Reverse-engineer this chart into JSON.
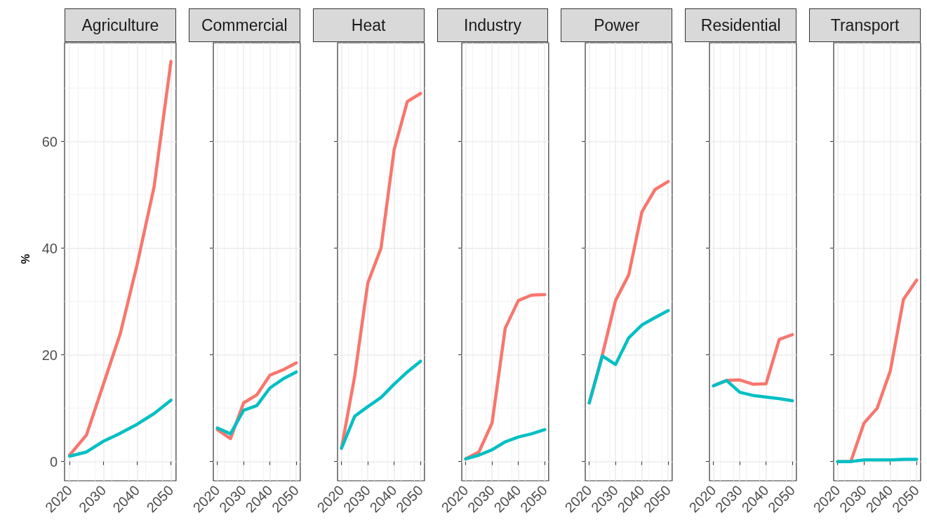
{
  "chart_data": [
    {
      "type": "line",
      "title": "Agriculture",
      "ylabel": "%",
      "x": [
        2020,
        2025,
        2030,
        2035,
        2040,
        2045,
        2050
      ],
      "xlim": [
        2018.5,
        2051.5
      ],
      "xticks": [
        2020,
        2030,
        2040,
        2050
      ],
      "ylim": [
        -3.6,
        78.5
      ],
      "yticks": [
        0,
        20,
        40,
        60
      ],
      "grid": true,
      "marker": "none",
      "series": [
        {
          "color": "#f8766d",
          "values": [
            1.2,
            5,
            14.5,
            24,
            37,
            51.5,
            75
          ]
        },
        {
          "color": "#00bfc4",
          "values": [
            1,
            1.8,
            3.8,
            5.3,
            7,
            9,
            11.5
          ]
        }
      ]
    },
    {
      "type": "line",
      "title": "Commercial",
      "x": [
        2020,
        2025,
        2030,
        2035,
        2040,
        2045,
        2050
      ],
      "xlim": [
        2018.5,
        2051.5
      ],
      "xticks": [
        2020,
        2030,
        2040,
        2050
      ],
      "ylim": [
        -3.6,
        78.5
      ],
      "yticks": [
        0,
        20,
        40,
        60
      ],
      "grid": true,
      "marker": "none",
      "tick_labels": "x",
      "series": [
        {
          "color": "#f8766d",
          "values": [
            6,
            4.3,
            11,
            12.5,
            16.2,
            17.2,
            18.5
          ]
        },
        {
          "color": "#00bfc4",
          "values": [
            6.3,
            5.2,
            9.6,
            10.5,
            13.8,
            15.5,
            16.8
          ]
        }
      ]
    },
    {
      "type": "line",
      "title": "Heat",
      "x": [
        2020,
        2025,
        2030,
        2035,
        2040,
        2045,
        2050
      ],
      "xlim": [
        2018.5,
        2051.5
      ],
      "xticks": [
        2020,
        2030,
        2040,
        2050
      ],
      "ylim": [
        -3.6,
        78.5
      ],
      "yticks": [
        0,
        20,
        40,
        60
      ],
      "grid": true,
      "marker": "none",
      "tick_labels": "x",
      "series": [
        {
          "color": "#f8766d",
          "values": [
            2.5,
            16,
            33.5,
            40,
            58.5,
            67.5,
            69
          ]
        },
        {
          "color": "#00bfc4",
          "values": [
            2.5,
            8.5,
            10.3,
            12,
            14.5,
            16.8,
            18.8
          ]
        }
      ]
    },
    {
      "type": "line",
      "title": "Industry",
      "x": [
        2020,
        2025,
        2030,
        2035,
        2040,
        2045,
        2050
      ],
      "xlim": [
        2018.5,
        2051.5
      ],
      "xticks": [
        2020,
        2030,
        2040,
        2050
      ],
      "ylim": [
        -3.6,
        78.5
      ],
      "yticks": [
        0,
        20,
        40,
        60
      ],
      "grid": true,
      "marker": "none",
      "tick_labels": "x",
      "series": [
        {
          "color": "#f8766d",
          "values": [
            0.5,
            1.8,
            7.2,
            25,
            30.2,
            31.2,
            31.3
          ]
        },
        {
          "color": "#00bfc4",
          "values": [
            0.5,
            1.2,
            2.2,
            3.7,
            4.6,
            5.2,
            6
          ]
        }
      ]
    },
    {
      "type": "line",
      "title": "Power",
      "x": [
        2020,
        2025,
        2030,
        2035,
        2040,
        2045,
        2050
      ],
      "xlim": [
        2018.5,
        2051.5
      ],
      "xticks": [
        2020,
        2030,
        2040,
        2050
      ],
      "ylim": [
        -3.6,
        78.5
      ],
      "yticks": [
        0,
        20,
        40,
        60
      ],
      "grid": true,
      "marker": "none",
      "tick_labels": "x",
      "series": [
        {
          "color": "#f8766d",
          "values": [
            11,
            20,
            30.2,
            35,
            46.8,
            51,
            52.5
          ]
        },
        {
          "color": "#00bfc4",
          "values": [
            11,
            19.8,
            18.2,
            23.2,
            25.6,
            27,
            28.3
          ]
        }
      ]
    },
    {
      "type": "line",
      "title": "Residential",
      "x": [
        2020,
        2025,
        2030,
        2035,
        2040,
        2045,
        2050
      ],
      "xlim": [
        2018.5,
        2051.5
      ],
      "xticks": [
        2020,
        2030,
        2040,
        2050
      ],
      "ylim": [
        -3.6,
        78.5
      ],
      "yticks": [
        0,
        20,
        40,
        60
      ],
      "grid": true,
      "marker": "none",
      "tick_labels": "x",
      "series": [
        {
          "color": "#f8766d",
          "values": [
            14.2,
            15.2,
            15.3,
            14.5,
            14.6,
            22.9,
            23.8
          ]
        },
        {
          "color": "#00bfc4",
          "values": [
            14.2,
            15.2,
            13,
            12.4,
            12.1,
            11.8,
            11.4
          ]
        }
      ]
    },
    {
      "type": "line",
      "title": "Transport",
      "x": [
        2020,
        2025,
        2030,
        2035,
        2040,
        2045,
        2050
      ],
      "xlim": [
        2018.5,
        2051.5
      ],
      "xticks": [
        2020,
        2030,
        2040,
        2050
      ],
      "ylim": [
        -3.6,
        78.5
      ],
      "yticks": [
        0,
        20,
        40,
        60
      ],
      "grid": true,
      "marker": "none",
      "tick_labels": "x",
      "series": [
        {
          "color": "#f8766d",
          "values": [
            0,
            0,
            7.2,
            10,
            17,
            30.4,
            34
          ]
        },
        {
          "color": "#00bfc4",
          "values": [
            0,
            0,
            0.3,
            0.3,
            0.3,
            0.4,
            0.4
          ]
        }
      ]
    }
  ]
}
